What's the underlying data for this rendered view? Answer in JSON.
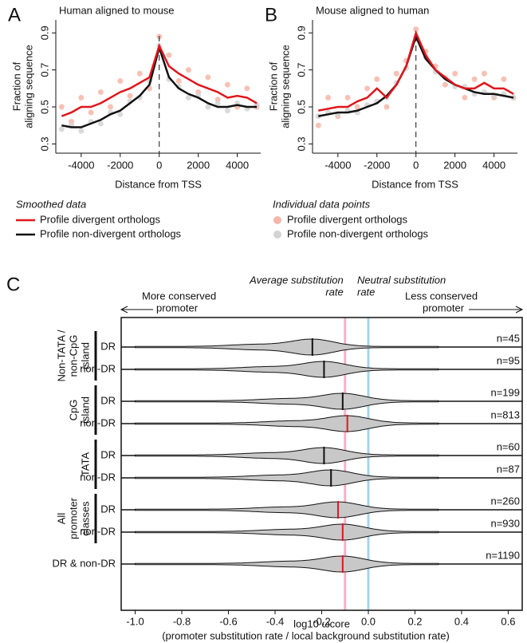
{
  "chart_data": [
    {
      "type": "line",
      "panel": "A",
      "title": "Human aligned to mouse",
      "xlabel": "Distance from TSS",
      "ylabel": [
        "Fraction of",
        "aligning sequence"
      ],
      "x": [
        -5000,
        -4500,
        -4000,
        -3500,
        -3000,
        -2500,
        -2000,
        -1500,
        -1000,
        -500,
        0,
        500,
        1000,
        1500,
        2000,
        2500,
        3000,
        3500,
        4000,
        4500,
        5000
      ],
      "xlim": [
        -5300,
        5200
      ],
      "xticks": [
        -4000,
        -2000,
        0,
        2000,
        4000
      ],
      "ylim": [
        0.25,
        0.97
      ],
      "yticks": [
        0.3,
        0.5,
        0.7,
        0.9
      ],
      "legend_title": "Smoothed data",
      "series": [
        {
          "name": "Profile divergent orthologs",
          "style": "line",
          "color": "#e0161b",
          "values": [
            0.45,
            0.47,
            0.5,
            0.5,
            0.52,
            0.55,
            0.58,
            0.6,
            0.63,
            0.66,
            0.83,
            0.72,
            0.68,
            0.65,
            0.62,
            0.6,
            0.58,
            0.55,
            0.56,
            0.55,
            0.52
          ]
        },
        {
          "name": "Profile non-divergent orthologs",
          "style": "line",
          "color": "#111111",
          "values": [
            0.4,
            0.39,
            0.39,
            0.41,
            0.43,
            0.46,
            0.48,
            0.52,
            0.56,
            0.62,
            0.82,
            0.66,
            0.6,
            0.57,
            0.55,
            0.52,
            0.5,
            0.5,
            0.51,
            0.5,
            0.5
          ]
        },
        {
          "style": "points",
          "color": "#f6b6a8",
          "values": [
            0.5,
            0.42,
            0.55,
            0.47,
            0.58,
            0.5,
            0.64,
            0.56,
            0.68,
            0.6,
            0.88,
            0.78,
            0.64,
            0.7,
            0.58,
            0.66,
            0.54,
            0.62,
            0.5,
            0.6,
            0.5
          ]
        },
        {
          "style": "points",
          "color": "#d3d3d3",
          "values": [
            0.38,
            0.4,
            0.37,
            0.42,
            0.41,
            0.47,
            0.46,
            0.53,
            0.55,
            0.64,
            0.83,
            0.65,
            0.61,
            0.55,
            0.56,
            0.5,
            0.52,
            0.48,
            0.52,
            0.49,
            0.51
          ]
        }
      ]
    },
    {
      "type": "line",
      "panel": "B",
      "title": "Mouse aligned to human",
      "xlabel": "Distance from TSS",
      "ylabel": [
        "Fraction of",
        "aligning sequence"
      ],
      "x": [
        -5000,
        -4500,
        -4000,
        -3500,
        -3000,
        -2500,
        -2000,
        -1500,
        -1000,
        -500,
        0,
        500,
        1000,
        1500,
        2000,
        2500,
        3000,
        3500,
        4000,
        4500,
        5000
      ],
      "xlim": [
        -5300,
        5200
      ],
      "xticks": [
        -4000,
        -2000,
        0,
        2000,
        4000
      ],
      "ylim": [
        0.25,
        0.97
      ],
      "yticks": [
        0.3,
        0.5,
        0.7,
        0.9
      ],
      "legend_title": "Individual data points",
      "series": [
        {
          "style": "line",
          "color": "#e0161b",
          "values": [
            0.48,
            0.49,
            0.5,
            0.5,
            0.53,
            0.55,
            0.6,
            0.55,
            0.62,
            0.72,
            0.9,
            0.78,
            0.7,
            0.66,
            0.62,
            0.6,
            0.6,
            0.63,
            0.6,
            0.6,
            0.57
          ]
        },
        {
          "style": "line",
          "color": "#111111",
          "values": [
            0.45,
            0.46,
            0.47,
            0.47,
            0.48,
            0.5,
            0.52,
            0.56,
            0.62,
            0.72,
            0.88,
            0.76,
            0.7,
            0.65,
            0.62,
            0.6,
            0.58,
            0.57,
            0.57,
            0.56,
            0.55
          ]
        },
        {
          "name": "Profile divergent orthologs",
          "style": "points",
          "color": "#f6b6a8",
          "values": [
            0.4,
            0.55,
            0.45,
            0.55,
            0.5,
            0.6,
            0.65,
            0.5,
            0.68,
            0.75,
            0.92,
            0.8,
            0.72,
            0.62,
            0.68,
            0.55,
            0.65,
            0.68,
            0.55,
            0.65,
            0.55
          ]
        },
        {
          "name": "Profile non-divergent orthologs",
          "style": "points",
          "color": "#d3d3d3",
          "values": [
            0.45,
            0.47,
            0.46,
            0.48,
            0.47,
            0.51,
            0.53,
            0.55,
            0.63,
            0.71,
            0.87,
            0.77,
            0.69,
            0.66,
            0.61,
            0.61,
            0.57,
            0.58,
            0.56,
            0.57,
            0.55
          ]
        }
      ]
    },
    {
      "type": "violin",
      "panel": "C",
      "xlabel": [
        "log10 ωcore",
        "(promoter substitution rate / local background substitution rate)"
      ],
      "xlim": [
        -1.06,
        0.66
      ],
      "xticks": [
        {
          "value": -1,
          "label": "-1.0"
        },
        -0.8,
        -0.6,
        -0.4,
        -0.2,
        {
          "value": 0,
          "label": "0.0"
        },
        0.2,
        0.4,
        0.6
      ],
      "left_note": [
        "More conserved",
        "promoter"
      ],
      "right_note": [
        "Less conserved",
        "promoter"
      ],
      "ref_lines": [
        {
          "value": -0.1,
          "label": [
            "Average substitution",
            "rate"
          ],
          "color": "#f3b3c8"
        },
        {
          "value": 0,
          "label": [
            "Neutral substitution",
            "rate"
          ],
          "color": "#a9d3e3"
        }
      ],
      "groups": [
        {
          "label": [
            "Non-TATA /",
            "non-CpG",
            "island"
          ],
          "rows": [
            {
              "category": "DR",
              "median": -0.24,
              "median_color": "#111111",
              "n": "n=45"
            },
            {
              "category": "non-DR",
              "median": -0.19,
              "median_color": "#111111",
              "n": "n=95"
            }
          ]
        },
        {
          "label": [
            "CpG",
            "island"
          ],
          "rows": [
            {
              "category": "DR",
              "median": -0.11,
              "median_color": "#111111",
              "n": "n=199"
            },
            {
              "category": "non-DR",
              "median": -0.09,
              "median_color": "#e0161b",
              "n": "n=813"
            }
          ]
        },
        {
          "label": [
            "TATA"
          ],
          "rows": [
            {
              "category": "DR",
              "median": -0.19,
              "median_color": "#111111",
              "n": "n=60"
            },
            {
              "category": "non-DR",
              "median": -0.16,
              "median_color": "#111111",
              "n": "n=87"
            }
          ]
        },
        {
          "label": [
            "All",
            "promoter",
            "classes"
          ],
          "rows": [
            {
              "category": "DR",
              "median": -0.13,
              "median_color": "#e0161b",
              "n": "n=260"
            },
            {
              "category": "non-DR",
              "median": -0.11,
              "median_color": "#e0161b",
              "n": "n=930"
            }
          ]
        },
        {
          "rows": [
            {
              "category": "DR & non-DR",
              "median": -0.11,
              "median_color": "#e0161b",
              "n": "n=1190"
            }
          ]
        }
      ]
    }
  ]
}
